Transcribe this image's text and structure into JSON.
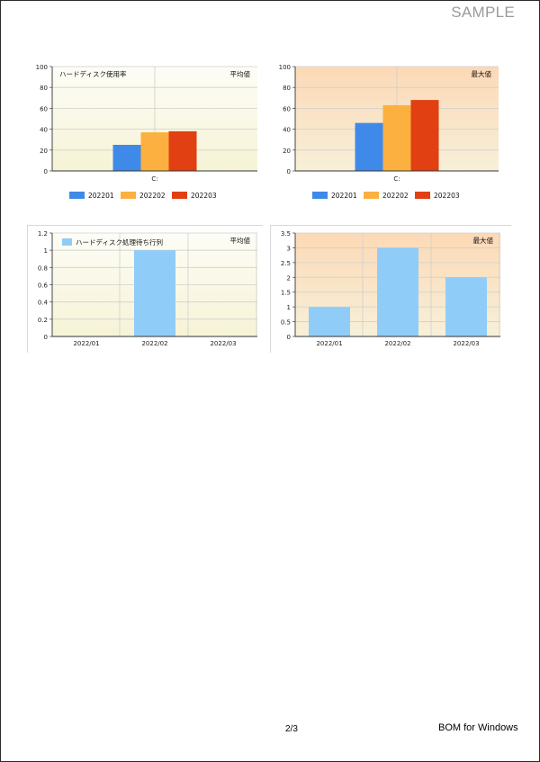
{
  "page": {
    "watermark": "SAMPLE",
    "page_number": "2/3",
    "app_name": "BOM for Windows"
  },
  "colors": {
    "blue": "#3f8ae8",
    "orange": "#fbb040",
    "red": "#e04012",
    "light_blue": "#8fcdf8",
    "bg_cream": "#faf9e8",
    "bg_peach": "#fcd9b6"
  },
  "chart_data": [
    {
      "type": "bar",
      "title": "ハードディスク使用率",
      "corner_label": "平均値",
      "categories": [
        "C:"
      ],
      "series": [
        {
          "name": "202201",
          "values": [
            25
          ],
          "color": "#3f8ae8"
        },
        {
          "name": "202202",
          "values": [
            37
          ],
          "color": "#fbb040"
        },
        {
          "name": "202203",
          "values": [
            38
          ],
          "color": "#e04012"
        }
      ],
      "ylim": [
        0,
        100
      ],
      "yticks": [
        "0",
        "20",
        "40",
        "60",
        "80",
        "100"
      ],
      "grid": true,
      "background": "cream",
      "legend": "bottom"
    },
    {
      "type": "bar",
      "title": "",
      "corner_label": "最大値",
      "categories": [
        "C:"
      ],
      "series": [
        {
          "name": "202201",
          "values": [
            46
          ],
          "color": "#3f8ae8"
        },
        {
          "name": "202202",
          "values": [
            63
          ],
          "color": "#fbb040"
        },
        {
          "name": "202203",
          "values": [
            68
          ],
          "color": "#e04012"
        }
      ],
      "ylim": [
        0,
        100
      ],
      "yticks": [
        "0",
        "20",
        "40",
        "60",
        "80",
        "100"
      ],
      "grid": true,
      "background": "peach",
      "legend": "bottom"
    },
    {
      "type": "bar",
      "title": "",
      "corner_label": "平均値",
      "categories": [
        "2022/01",
        "2022/02",
        "2022/03"
      ],
      "series": [
        {
          "name": "ハードディスク処理待ち行列",
          "values": [
            0,
            1,
            0
          ],
          "color": "#8fcdf8"
        }
      ],
      "ylim": [
        0,
        1.2
      ],
      "yticks": [
        "0",
        "0.2",
        "0.4",
        "0.6",
        "0.8",
        "1",
        "1.2"
      ],
      "grid": true,
      "background": "cream",
      "legend": "top-left"
    },
    {
      "type": "bar",
      "title": "",
      "corner_label": "最大値",
      "categories": [
        "2022/01",
        "2022/02",
        "2022/03"
      ],
      "series": [
        {
          "values": [
            1,
            3,
            2
          ],
          "color": "#8fcdf8"
        }
      ],
      "ylim": [
        0,
        3.5
      ],
      "yticks": [
        "0",
        "0.5",
        "1",
        "1.5",
        "2",
        "2.5",
        "3",
        "3.5"
      ],
      "grid": true,
      "background": "peach",
      "legend": "none"
    }
  ]
}
